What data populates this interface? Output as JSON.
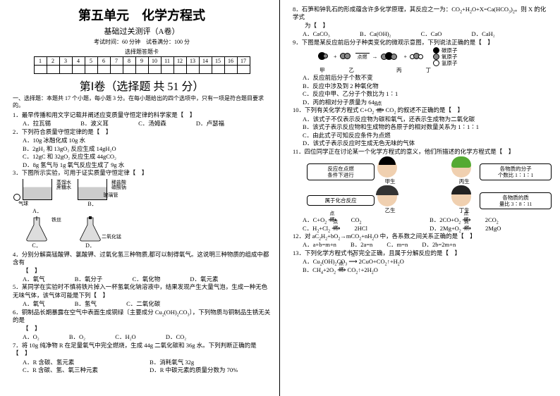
{
  "header": {
    "title": "第五单元　化学方程式",
    "subtitle": "基础过关测评（A卷）",
    "exam_info": "考试时间：60 分钟　试卷满分：100 分",
    "card_label": "选择题答题卡",
    "card_cells": [
      "1",
      "2",
      "3",
      "4",
      "5",
      "6",
      "7",
      "8",
      "9",
      "10",
      "11",
      "12",
      "13",
      "14",
      "15",
      "16",
      "17"
    ],
    "section1": "第Ⅰ卷（选择题 共 51 分）",
    "instr": "一、选择题：本题共 17 个小题，每小题 3 分。在每小题给出的四个选项中，只有一项是符合题目要求的。"
  },
  "q1": {
    "stem": "1．最早传播和用文字记载并阐述应变质量守恒定律的科学家是【　】",
    "a": "A．拉瓦锡",
    "b": "B．波义耳",
    "c": "C．汤姆森",
    "d": "D．卢瑟福"
  },
  "q2": {
    "stem": "2．下列符合质量守恒定律的是【　】",
    "a": "A．10g 冰融化成 10g 水",
    "b": "B．2gH₂ 和 13gO₂ 反应生成 14gH₂O",
    "c": "C．12gC 和 32gO₂ 反应生成 44gCO₂",
    "d": "D．8g 氢气与 1g 氧气反应生成了 9g 水"
  },
  "q3": {
    "stem": "3．下图所示实验，可用于证实质量守恒定律【　】",
    "la": "A．",
    "lb": "B．",
    "lc": "C．",
    "ld": "D．",
    "fa1": "蒸馏水",
    "fa2": "蔗糖水",
    "fa3": "气球",
    "fb1": "稀盐酸",
    "fb2": "碳酸钠",
    "fb3": "玻璃管",
    "fc": "铁丝",
    "fd": "二氧化锰"
  },
  "q4": {
    "stem": "4．分别分解高锰酸钾、氯酸钾、过氧化氢三种物质,都可以制得氧气。这说明三种物质的组成中都含有",
    "blank": "【　】",
    "a": "A．氧气",
    "b": "B．氧分子",
    "c": "C．氧化物",
    "d": "D．氧元素"
  },
  "q5": {
    "stem": "5．某同学在实验时不慎将铁片掉入一杯氢氧化钠溶液中，结果发现产生大量气泡，生成一种无色无味气体，该气体可能是下列【　】",
    "a": "A．氧气",
    "b": "B．氢气",
    "c": "C．二氧化碳"
  },
  "q6": {
    "stem": "6．铜制品长期暴露在空气中表面生成铜绿〔主要成分 Cu₂(OH)₂CO₃〕，下列物质与铜制品生锈无关的是【　】",
    "a": "A．O₂",
    "b": "B．O₂",
    "c": "C．H₂O",
    "d": "D．CO₂"
  },
  "q7": {
    "stem": "7．将 10g 纯净物 R 在足量氧气中完全燃烧，生成 44g 二氧化碳和 36g 水。下列判断正确的是【　】",
    "a": "A．R 含碳、氢元素",
    "b": "B．消耗氧气 32g",
    "c": "C．R 含碳、氢、氧三种元素",
    "d": "D．R 中碳元素的质量分数为 70%"
  },
  "q8": {
    "stem": "8．石笋和钟乳石的形成蕴含许多化学原理，其反应之一为：CO₂+H₂O+X=Ca(HCO₃)₂。则 X 的化学式为【　】",
    "a": "A．CaCO₃",
    "b": "B．Ca(OH)₂",
    "c": "C．CaO",
    "d": "D．CaH₂"
  },
  "q9": {
    "stem": "9．下图是某反应前后分子种类变化的微观示意图，下列说法正确的是【　】",
    "diag": {
      "k": [
        "甲",
        "乙",
        "丙",
        "丁"
      ],
      "colors": {
        "o": "#000",
        "h": "#fff",
        "n": "#888"
      },
      "legend": [
        "碳原子",
        "氧原子",
        "氢原子"
      ]
    },
    "a": "A．反应前后分子个数不变",
    "b": "B．反应中涉及到 2 种氧化物",
    "c": "C．反应中甲、乙分子个数比为 1∶1",
    "d": "D．丙的相对分子质量为 64g"
  },
  "q10": {
    "stem": "10．下列有关化学方程式 C+O₂ ⟶ CO₂ 的叙述不正确的是【　】",
    "a": "A．该式子不仅表示反应物为碳和氧气，还表示生成物为二氧化碳",
    "b": "B．该式子表示反应物和生成物的各原子的相对数量关系为 1∶1∶1",
    "c": "C．由此式子可知反应条件为点燃",
    "d": "D．该式子表示反应时生成无色无味的气体"
  },
  "q11": {
    "stem": "11．四位同学正在讨论某一个化学方程式的意义，他们所描述的化学方程式是【　】",
    "s1": "反应在点燃\n条件下进行",
    "p1": "甲生",
    "s2": "各物质的分子\n个数比 1∶1∶1",
    "p2": "丙生",
    "s3": "属于化合反应",
    "p3": "乙生",
    "s4": "各物质的质\n量比 3∶8∶11",
    "p4": "丁生",
    "a": "A．C+O₂ ⟶ CO₂",
    "b": "B．2CO+O₂ ⟶ 2CO₂",
    "c": "C．H₂+Cl₂ ⟶ 2HCl",
    "d": "D．2Mg+O₂ ⟶ 2MgO",
    "fire": "点燃"
  },
  "q12": {
    "stem": "12．对 aC₂H₂+bO₂→mCO₂+nH₂O 中，各系数之间关系正确的是【　】",
    "a": "A．a+b=m+n",
    "b": "B．2a=n",
    "c": "C．m=n",
    "d": "D．2b=2m+n"
  },
  "q13": {
    "stem": "13．下列化学方程式书写完全正确，且属于分解反应的是【　】",
    "a": "A．Cu₂(OH)₂CO₃ ⟶ 2CuO+CO₂↑+H₂O",
    "b": "B．CH₄+2O₂ ⟶ CO₂↑+2H₂O",
    "fire": "点燃",
    "delta": "Δ"
  }
}
